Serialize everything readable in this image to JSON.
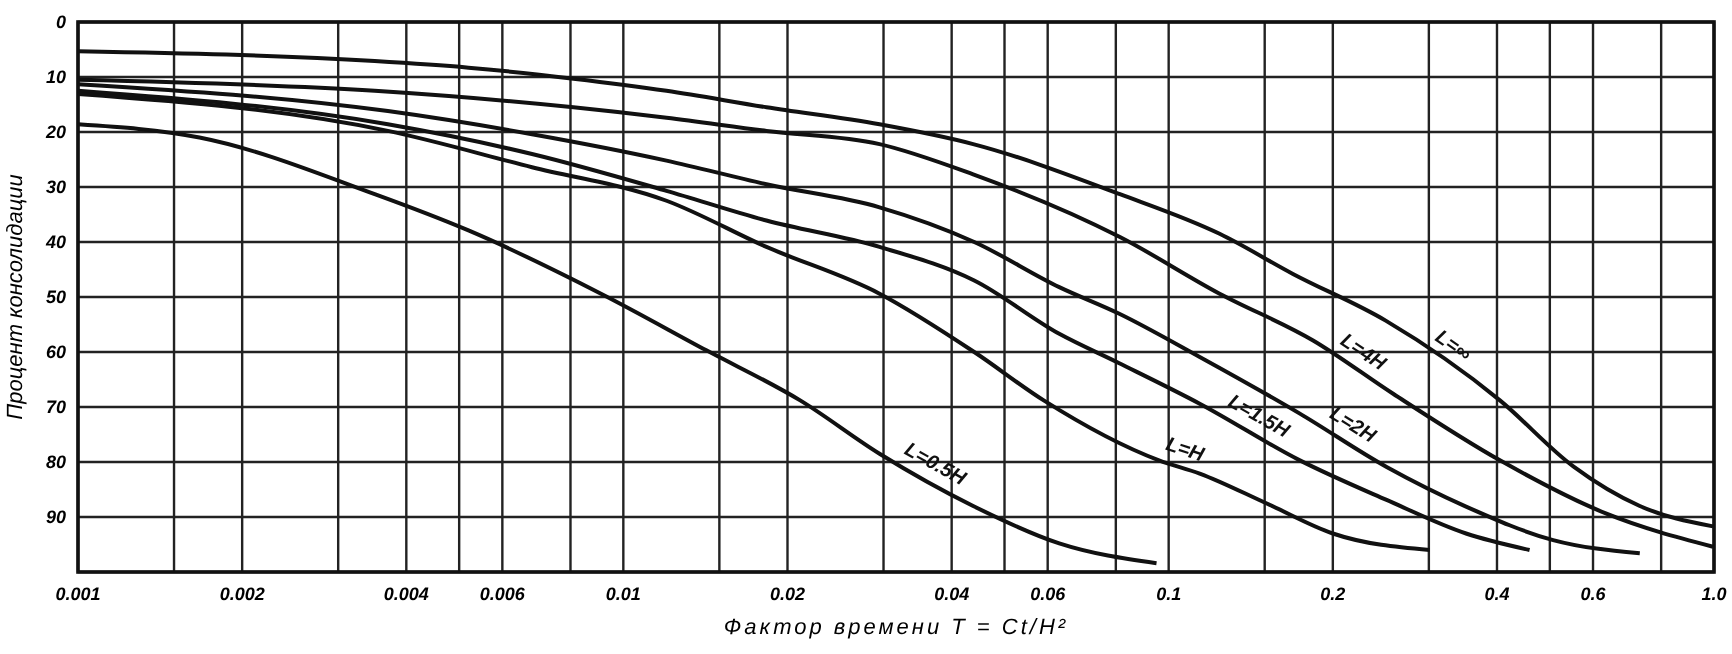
{
  "chart_data": {
    "type": "line",
    "xlabel": "Фактор времени T = Ct/H²",
    "ylabel": "Процент консолидации",
    "log": "x",
    "grid": true,
    "marker": "none",
    "line_style": "solid",
    "xlim": [
      0.001,
      1.0
    ],
    "ylim": [
      100,
      0
    ],
    "xticks": [
      0.001,
      {
        "value": 0.0015,
        "label": null
      },
      0.002,
      {
        "value": 0.003,
        "label": null
      },
      0.004,
      {
        "value": 0.005,
        "label": null
      },
      0.006,
      {
        "value": 0.008,
        "label": null
      },
      0.01,
      {
        "value": 0.015,
        "label": null
      },
      0.02,
      {
        "value": 0.03,
        "label": null
      },
      0.04,
      {
        "value": 0.05,
        "label": null
      },
      0.06,
      {
        "value": 0.08,
        "label": null
      },
      0.1,
      {
        "value": 0.15,
        "label": null
      },
      0.2,
      {
        "value": 0.3,
        "label": null
      },
      0.4,
      {
        "value": 0.5,
        "label": null
      },
      0.6,
      {
        "value": 0.8,
        "label": null
      },
      {
        "value": 1,
        "label": "1.0"
      }
    ],
    "yticks": [
      0,
      10,
      20,
      30,
      40,
      50,
      60,
      70,
      80,
      90,
      {
        "value": 100,
        "label": null
      }
    ],
    "series": [
      {
        "name": "L=∞",
        "color": "#111111",
        "x": [
          0.001,
          0.0035,
          0.0052,
          0.0081,
          0.012,
          0.0183,
          0.0295,
          0.0438,
          0.0814,
          0.124,
          0.169,
          0.25,
          0.405,
          0.552,
          0.731,
          0.996
        ],
        "values": [
          5.3,
          7.1,
          8.3,
          10.3,
          12.5,
          15.5,
          18.6,
          22.2,
          31.3,
          38.5,
          45.8,
          54.3,
          68.8,
          80.8,
          88,
          91.7
        ]
      },
      {
        "name": "L=4H",
        "color": "#111111",
        "x": [
          0.001,
          0.0035,
          0.0081,
          0.012,
          0.0183,
          0.0295,
          0.0438,
          0.0814,
          0.124,
          0.184,
          0.258,
          0.405,
          0.635,
          0.996
        ],
        "values": [
          10.5,
          12.5,
          15.5,
          17.4,
          19.8,
          22.2,
          27.7,
          39.1,
          49.4,
          57.9,
          67.6,
          79.7,
          89.4,
          95.4
        ]
      },
      {
        "name": "L=2H",
        "color": "#111111",
        "x": [
          0.001,
          0.0037,
          0.0068,
          0.012,
          0.0183,
          0.0295,
          0.044,
          0.063,
          0.081,
          0.114,
          0.174,
          0.251,
          0.351,
          0.507,
          0.731
        ],
        "values": [
          11.3,
          16.2,
          20.4,
          25.2,
          29.5,
          33.7,
          40,
          48.2,
          53,
          60.9,
          71.2,
          80.9,
          88.1,
          94.2,
          96.6
        ]
      },
      {
        "name": "L=1.5H",
        "color": "#111111",
        "x": [
          0.001,
          0.0037,
          0.0068,
          0.012,
          0.0183,
          0.0295,
          0.044,
          0.063,
          0.081,
          0.114,
          0.174,
          0.251,
          0.351,
          0.459
        ],
        "values": [
          12.5,
          18.6,
          24,
          30.7,
          36.1,
          40.9,
          47,
          56.7,
          62,
          69.4,
          79.7,
          86.9,
          93,
          96
        ]
      },
      {
        "name": "L=H",
        "color": "#111111",
        "x": [
          0.001,
          0.0037,
          0.0068,
          0.012,
          0.0183,
          0.0295,
          0.044,
          0.059,
          0.096,
          0.114,
          0.151,
          0.2,
          0.301
        ],
        "values": [
          13.1,
          19.8,
          26.4,
          32.5,
          40.9,
          49.4,
          60,
          68.8,
          79.7,
          82.1,
          87.5,
          93,
          96
        ]
      },
      {
        "name": "L=0.5H",
        "color": "#111111",
        "x": [
          0.001,
          0.00167,
          0.0035,
          0.0052,
          0.0091,
          0.0142,
          0.0211,
          0.0295,
          0.0438,
          0.063,
          0.095
        ],
        "values": [
          18.6,
          21,
          31.3,
          37.9,
          49.4,
          59.7,
          68.8,
          78.5,
          88,
          94.8,
          98.4
        ]
      }
    ]
  }
}
